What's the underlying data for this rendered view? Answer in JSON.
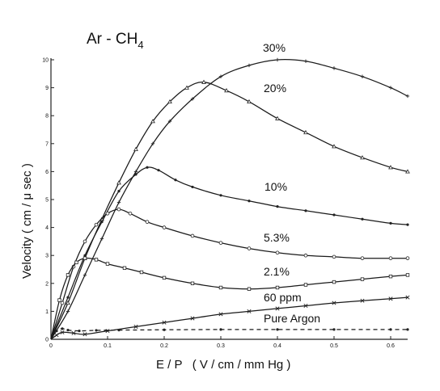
{
  "chart_data": {
    "type": "line",
    "title": "Ar - CH",
    "title_subscript": "4",
    "xlabel": "E / P   ( V / cm / mm Hg )",
    "ylabel": "Velocity  ( cm / μ sec )",
    "xlim": [
      0,
      0.63
    ],
    "ylim": [
      0,
      10
    ],
    "x_ticks": [
      {
        "value": 0,
        "label": "0"
      },
      {
        "value": 0.1,
        "label": "0.1"
      },
      {
        "value": 0.2,
        "label": "0.2"
      },
      {
        "value": 0.3,
        "label": "0.3"
      },
      {
        "value": 0.4,
        "label": "0.4"
      },
      {
        "value": 0.5,
        "label": "0.5"
      },
      {
        "value": 0.6,
        "label": "0.6"
      }
    ],
    "y_ticks": [
      {
        "value": 0,
        "label": "0"
      },
      {
        "value": 1,
        "label": "1"
      },
      {
        "value": 2,
        "label": "2"
      },
      {
        "value": 3,
        "label": "3"
      },
      {
        "value": 4,
        "label": "4"
      },
      {
        "value": 5,
        "label": "5"
      },
      {
        "value": 6,
        "label": "6"
      },
      {
        "value": 7,
        "label": "7"
      },
      {
        "value": 8,
        "label": "8"
      },
      {
        "value": 9,
        "label": "9"
      },
      {
        "value": 10,
        "label": "10"
      }
    ],
    "grid": false,
    "legend": "none",
    "series": [
      {
        "name": "30%",
        "marker": "plus",
        "dashed": false,
        "x": [
          0,
          0.03,
          0.06,
          0.09,
          0.12,
          0.15,
          0.18,
          0.21,
          0.25,
          0.3,
          0.35,
          0.4,
          0.45,
          0.5,
          0.55,
          0.6,
          0.63
        ],
        "y": [
          0,
          1.0,
          2.3,
          3.6,
          4.9,
          6.0,
          7.0,
          7.8,
          8.6,
          9.4,
          9.8,
          10.0,
          9.95,
          9.7,
          9.4,
          9.0,
          8.7
        ]
      },
      {
        "name": "20%",
        "marker": "triangle",
        "dashed": false,
        "x": [
          0,
          0.03,
          0.06,
          0.09,
          0.12,
          0.15,
          0.18,
          0.21,
          0.24,
          0.27,
          0.31,
          0.35,
          0.4,
          0.45,
          0.5,
          0.55,
          0.6,
          0.63
        ],
        "y": [
          0,
          1.3,
          2.9,
          4.3,
          5.6,
          6.8,
          7.8,
          8.5,
          9.0,
          9.2,
          8.9,
          8.5,
          7.9,
          7.4,
          6.9,
          6.5,
          6.15,
          6.0
        ]
      },
      {
        "name": "10%",
        "marker": "dot",
        "dashed": false,
        "x": [
          0,
          0.03,
          0.06,
          0.09,
          0.12,
          0.15,
          0.17,
          0.19,
          0.22,
          0.25,
          0.3,
          0.35,
          0.4,
          0.45,
          0.5,
          0.55,
          0.6,
          0.63
        ],
        "y": [
          0,
          1.5,
          3.0,
          4.2,
          5.3,
          5.9,
          6.15,
          6.05,
          5.7,
          5.45,
          5.15,
          4.95,
          4.75,
          4.6,
          4.45,
          4.3,
          4.15,
          4.1
        ]
      },
      {
        "name": "5.3%",
        "marker": "circle",
        "dashed": false,
        "x": [
          0,
          0.02,
          0.04,
          0.06,
          0.08,
          0.1,
          0.12,
          0.14,
          0.17,
          0.2,
          0.25,
          0.3,
          0.35,
          0.4,
          0.45,
          0.5,
          0.55,
          0.6,
          0.63
        ],
        "y": [
          0,
          1.3,
          2.6,
          3.5,
          4.1,
          4.5,
          4.65,
          4.5,
          4.2,
          4.0,
          3.7,
          3.45,
          3.25,
          3.1,
          3.0,
          2.95,
          2.9,
          2.9,
          2.9
        ]
      },
      {
        "name": "2.1%",
        "marker": "square",
        "dashed": false,
        "x": [
          0,
          0.015,
          0.03,
          0.045,
          0.06,
          0.08,
          0.1,
          0.13,
          0.16,
          0.2,
          0.25,
          0.3,
          0.35,
          0.4,
          0.45,
          0.5,
          0.55,
          0.6,
          0.63
        ],
        "y": [
          0,
          1.4,
          2.3,
          2.75,
          2.9,
          2.85,
          2.7,
          2.55,
          2.4,
          2.2,
          2.0,
          1.85,
          1.8,
          1.85,
          1.95,
          2.05,
          2.15,
          2.25,
          2.3
        ]
      },
      {
        "name": "60 ppm",
        "marker": "x",
        "dashed": false,
        "x": [
          0,
          0.01,
          0.02,
          0.04,
          0.06,
          0.1,
          0.15,
          0.2,
          0.25,
          0.3,
          0.35,
          0.4,
          0.45,
          0.5,
          0.55,
          0.6,
          0.63
        ],
        "y": [
          0,
          0.15,
          0.25,
          0.22,
          0.18,
          0.3,
          0.45,
          0.6,
          0.75,
          0.9,
          1.0,
          1.1,
          1.2,
          1.3,
          1.38,
          1.45,
          1.5
        ]
      },
      {
        "name": "Pure Argon",
        "marker": "dot",
        "dashed": true,
        "x": [
          0,
          0.01,
          0.02,
          0.03,
          0.05,
          0.08,
          0.12,
          0.2,
          0.3,
          0.4,
          0.5,
          0.6,
          0.63
        ],
        "y": [
          0,
          0.3,
          0.38,
          0.33,
          0.3,
          0.32,
          0.33,
          0.34,
          0.35,
          0.35,
          0.35,
          0.35,
          0.35
        ]
      }
    ]
  }
}
